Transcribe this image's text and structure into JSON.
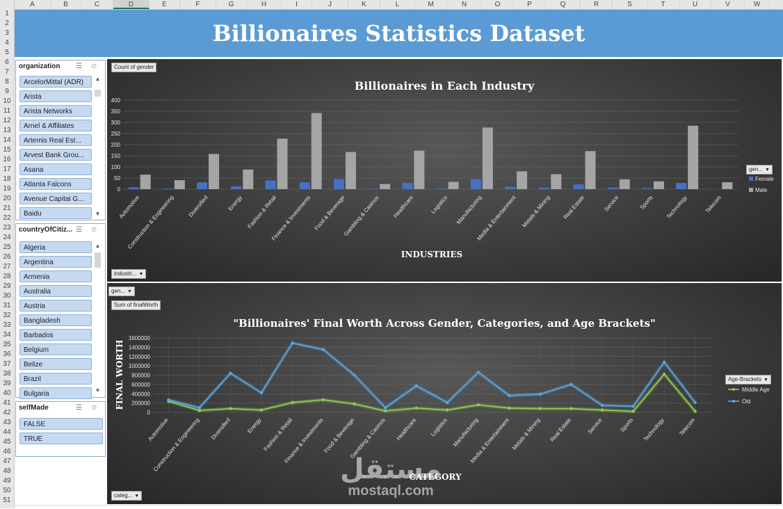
{
  "columns": [
    "A",
    "B",
    "C",
    "D",
    "E",
    "F",
    "G",
    "H",
    "I",
    "J",
    "K",
    "L",
    "M",
    "N",
    "O",
    "P",
    "Q",
    "R",
    "S",
    "T",
    "U",
    "V",
    "W"
  ],
  "selected_column": "D",
  "rows": [
    "1",
    "2",
    "3",
    "4",
    "5",
    "6",
    "7",
    "8",
    "9",
    "10",
    "11",
    "12",
    "13",
    "14",
    "15",
    "16",
    "17",
    "18",
    "19",
    "20",
    "21",
    "22",
    "23",
    "24",
    "25",
    "26",
    "27",
    "28",
    "29",
    "30",
    "31",
    "32",
    "33",
    "34",
    "35",
    "36",
    "37",
    "38",
    "39",
    "40",
    "41",
    "42",
    "43",
    "44",
    "45",
    "46",
    "47",
    "48",
    "49",
    "50",
    "51"
  ],
  "dashboard": {
    "title": "Billionaires Statistics Dataset"
  },
  "slicers": {
    "organization": {
      "header": "organization",
      "items": [
        "ArcelorMittal (ADR)",
        "Arista",
        "Arista Networks",
        "Arnel & Affiliates",
        "Artemis Real Est...",
        "Arvest Bank Grou...",
        "Asana",
        "Atlanta Falcons",
        "Avenue Capital G...",
        "Baidu"
      ]
    },
    "country": {
      "header": "countryOfCitiz...",
      "items": [
        "Algeria",
        "Argentina",
        "Armenia",
        "Australia",
        "Austria",
        "Bangladesh",
        "Barbados",
        "Belgium",
        "Belize",
        "Brazil",
        "Bulgaria"
      ]
    },
    "selfMade": {
      "header": "selfMade",
      "items": [
        "FALSE",
        "TRUE"
      ]
    }
  },
  "bar_panel": {
    "value_button": "Count of gender",
    "axis_button": "industri...",
    "legend_button": "gen...",
    "xlabel": "INDUSTRIES"
  },
  "line_panel": {
    "filter_button": "gen...",
    "value_button": "Sum of finalWorth",
    "axis_button": "categ...",
    "legend_button": "Age-Brackets"
  },
  "watermark": {
    "arabic": "مستقل",
    "latin": "mostaql.com"
  },
  "colors": {
    "banner": "#5b9bd5",
    "female": "#4472c4",
    "male": "#a5a5a5",
    "middle_age": "#8fd14f",
    "old": "#5aa9e6"
  },
  "chart_data": [
    {
      "type": "bar",
      "title": "Billionaires in Each Industry",
      "xlabel": "INDUSTRIES",
      "ylabel": "",
      "ylim": [
        0,
        400
      ],
      "yticks": [
        0,
        50,
        100,
        150,
        200,
        250,
        300,
        350,
        400
      ],
      "grid": true,
      "legend": "right",
      "categories": [
        "Automotive",
        "Construction & Engineering",
        "Diversified",
        "Energy",
        "Fashion & Retail",
        "Finance & Investments",
        "Food & Beverage",
        "Gambling & Casinos",
        "Healthcare",
        "Logistics",
        "Manufacturing",
        "Media & Entertainment",
        "Metals & Mining",
        "Real Estate",
        "Service",
        "Sports",
        "Technology",
        "Telecom"
      ],
      "series": [
        {
          "name": "Female",
          "values": [
            8,
            3,
            30,
            12,
            39,
            31,
            45,
            2,
            28,
            3,
            45,
            11,
            7,
            21,
            7,
            4,
            28,
            0
          ]
        },
        {
          "name": "Male",
          "values": [
            65,
            40,
            158,
            88,
            227,
            342,
            167,
            23,
            173,
            33,
            277,
            80,
            67,
            171,
            44,
            35,
            285,
            31
          ]
        }
      ]
    },
    {
      "type": "line",
      "title": "\"Billionaires' Final Worth Across Gender, Categories, and Age Brackets\"",
      "xlabel": "CATEGORY",
      "ylabel": "FINAL WORTH",
      "ylim": [
        0,
        1600000
      ],
      "yticks": [
        0,
        200000,
        400000,
        600000,
        800000,
        1000000,
        1200000,
        1400000,
        1600000
      ],
      "grid": true,
      "legend": "right",
      "categories": [
        "Automotive",
        "Construction & Engineering",
        "Diversified",
        "Energy",
        "Fashion & Retail",
        "Finance & Investments",
        "Food & Beverage",
        "Gambling & Casinos",
        "Healthcare",
        "Logistics",
        "Manufacturing",
        "Media & Entertainment",
        "Metals & Mining",
        "Real Estate",
        "Service",
        "Sports",
        "Technology",
        "Telecom"
      ],
      "series": [
        {
          "name": "Middle Age",
          "values": [
            240000,
            40000,
            80000,
            50000,
            210000,
            270000,
            180000,
            30000,
            90000,
            50000,
            160000,
            90000,
            80000,
            80000,
            50000,
            20000,
            820000,
            20000
          ]
        },
        {
          "name": "Old",
          "values": [
            270000,
            100000,
            840000,
            420000,
            1490000,
            1350000,
            800000,
            100000,
            570000,
            210000,
            860000,
            360000,
            390000,
            600000,
            150000,
            130000,
            1080000,
            210000
          ]
        }
      ]
    }
  ]
}
